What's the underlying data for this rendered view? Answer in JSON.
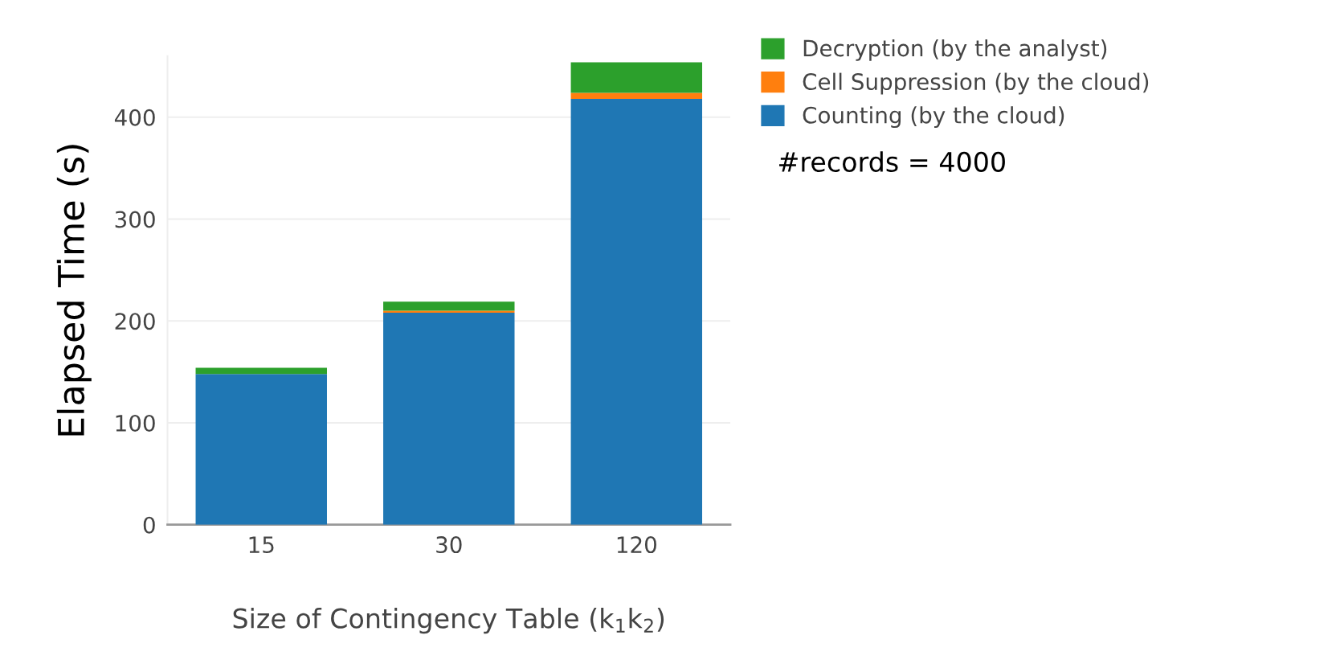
{
  "chart_data": {
    "type": "bar",
    "stacked": true,
    "xlabel": "Size of Contingency Table (k$_{1}$k$_{2}$)",
    "ylabel": "Elapsed Time (s)",
    "categories": [
      "15",
      "30",
      "120"
    ],
    "series": [
      {
        "name": "Counting (by the cloud)",
        "color": "#1f77b4",
        "values": [
          148,
          208,
          418
        ]
      },
      {
        "name": "Cell Suppression (by the cloud)",
        "color": "#ff7f0e",
        "values": [
          0,
          2,
          6
        ]
      },
      {
        "name": "Decryption (by the analyst)",
        "color": "#2ca02c",
        "values": [
          6,
          9,
          30
        ]
      }
    ],
    "ylim": [
      0,
      460
    ],
    "yticks": [
      0,
      100,
      200,
      300,
      400
    ],
    "grid": "y",
    "legend": "top right",
    "annotations": [
      "#records = 4000"
    ]
  }
}
